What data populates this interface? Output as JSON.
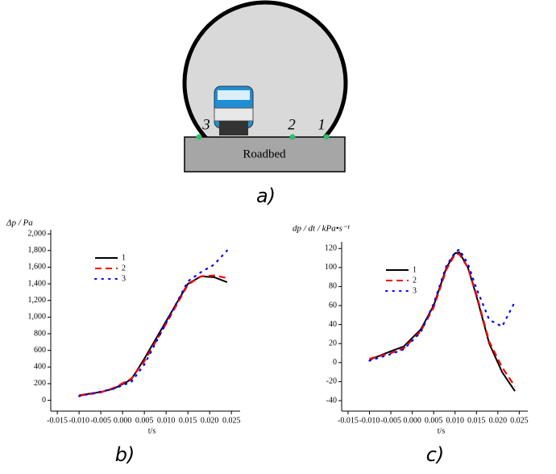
{
  "diagram": {
    "roadbed": "Roadbed",
    "points": [
      "3",
      "2",
      "1"
    ],
    "caption": "a)"
  },
  "captions": [
    "b)",
    "c)"
  ],
  "chart_data": [
    {
      "type": "line",
      "title": "Δp / Pa",
      "x_label": "t/s",
      "x": [
        -0.01,
        -0.005,
        -0.002,
        0.002,
        0.005,
        0.01,
        0.015,
        0.018,
        0.021,
        0.024
      ],
      "series": [
        {
          "name": "1",
          "color": "#000000",
          "dash": "solid",
          "values": [
            60,
            100,
            140,
            250,
            500,
            950,
            1400,
            1490,
            1480,
            1420
          ]
        },
        {
          "name": "2",
          "color": "#ff0000",
          "dash": "dashed",
          "values": [
            55,
            95,
            150,
            260,
            470,
            920,
            1390,
            1490,
            1500,
            1470
          ]
        },
        {
          "name": "3",
          "color": "#0000ff",
          "dash": "dotted",
          "values": [
            50,
            105,
            140,
            220,
            430,
            930,
            1430,
            1540,
            1630,
            1800
          ]
        }
      ],
      "xlim": [
        -0.0165,
        0.027
      ],
      "xticks": [
        -0.015,
        {
          "value": -0.01,
          "label": "-0.010"
        },
        -0.005,
        {
          "value": 0,
          "label": "0.000"
        },
        0.005,
        {
          "value": 0.01,
          "label": "0.010"
        },
        0.015,
        {
          "value": 0.02,
          "label": "0.020"
        },
        0.025
      ],
      "ylim": [
        -130,
        2050
      ],
      "yticks": [
        0,
        200,
        400,
        600,
        800,
        {
          "value": 1000,
          "label": "1,000"
        },
        {
          "value": 1200,
          "label": "1,200"
        },
        {
          "value": 1400,
          "label": "1,400"
        },
        {
          "value": 1600,
          "label": "1,600"
        },
        {
          "value": 1800,
          "label": "1,800"
        },
        {
          "value": 2000,
          "label": "2,000"
        }
      ],
      "legend": "upper left",
      "grid": false
    },
    {
      "type": "line",
      "title": "dp / dt / kPa•s⁻¹",
      "x_label": "t/s",
      "x": [
        -0.01,
        -0.005,
        -0.002,
        0.002,
        0.005,
        0.008,
        0.01,
        0.011,
        0.013,
        0.015,
        0.018,
        0.021,
        0.024
      ],
      "series": [
        {
          "name": "1",
          "color": "#000000",
          "dash": "solid",
          "values": [
            3,
            12,
            17,
            35,
            60,
            100,
            115,
            116,
            100,
            70,
            20,
            -10,
            -30
          ]
        },
        {
          "name": "2",
          "color": "#ff0000",
          "dash": "dashed",
          "values": [
            4,
            10,
            15,
            33,
            58,
            98,
            114,
            114,
            100,
            72,
            22,
            -5,
            -25
          ]
        },
        {
          "name": "3",
          "color": "#0000ff",
          "dash": "dotted",
          "values": [
            2,
            9,
            14,
            32,
            62,
            102,
            116,
            119,
            104,
            78,
            45,
            38,
            64
          ]
        }
      ],
      "xlim": [
        -0.0165,
        0.027
      ],
      "xticks": [
        -0.015,
        {
          "value": -0.01,
          "label": "-0.010"
        },
        -0.005,
        {
          "value": 0,
          "label": "0.000"
        },
        0.005,
        {
          "value": 0.01,
          "label": "0.010"
        },
        0.015,
        {
          "value": 0.02,
          "label": "0.020"
        },
        0.025
      ],
      "ylim": [
        -51,
        127
      ],
      "yticks": [
        -40,
        -20,
        0,
        20,
        40,
        60,
        80,
        100,
        120
      ],
      "legend": "upper left",
      "grid": false
    }
  ]
}
